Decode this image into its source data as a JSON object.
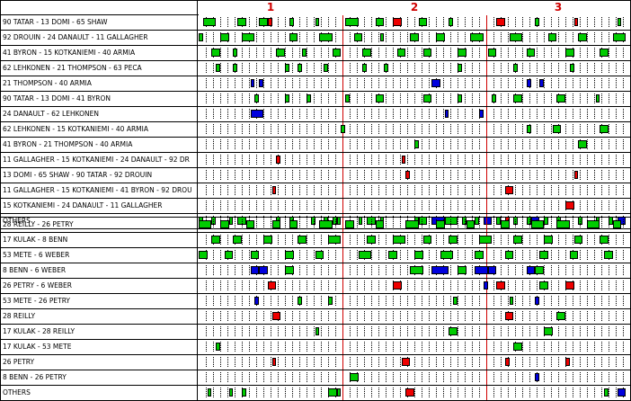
{
  "periods": [
    "1",
    "2",
    "3"
  ],
  "colors": {
    "even_strength": "#00cc00",
    "power_play": "#ee0000",
    "penalty_kill": "#0000dd",
    "period_line": "#d00000"
  },
  "team1": {
    "lines": [
      {
        "label": "90 TATAR - 13 DOMI - 65 SHAW",
        "shifts": [
          [
            "g",
            0.01,
            0.04
          ],
          [
            "g",
            0.09,
            0.11
          ],
          [
            "g",
            0.14,
            0.16
          ],
          [
            "r",
            0.16,
            0.17
          ],
          [
            "g",
            0.21,
            0.22
          ],
          [
            "g",
            0.27,
            0.28
          ],
          [
            "g",
            0.34,
            0.37
          ],
          [
            "g",
            0.41,
            0.43
          ],
          [
            "r",
            0.45,
            0.47
          ],
          [
            "g",
            0.51,
            0.53
          ],
          [
            "g",
            0.58,
            0.59
          ],
          [
            "r",
            0.69,
            0.71
          ],
          [
            "g",
            0.78,
            0.79
          ],
          [
            "r",
            0.87,
            0.88
          ],
          [
            "g",
            0.97,
            0.98
          ]
        ]
      },
      {
        "label": "92 DROUIN - 24 DANAULT - 11 GALLAGHER",
        "shifts": [
          [
            "g",
            0.0,
            0.01
          ],
          [
            "g",
            0.05,
            0.07
          ],
          [
            "g",
            0.1,
            0.13
          ],
          [
            "g",
            0.21,
            0.23
          ],
          [
            "g",
            0.28,
            0.31
          ],
          [
            "g",
            0.36,
            0.38
          ],
          [
            "g",
            0.42,
            0.43
          ],
          [
            "g",
            0.49,
            0.51
          ],
          [
            "g",
            0.55,
            0.57
          ],
          [
            "g",
            0.63,
            0.66
          ],
          [
            "g",
            0.72,
            0.75
          ],
          [
            "g",
            0.81,
            0.83
          ],
          [
            "g",
            0.88,
            0.9
          ],
          [
            "g",
            0.96,
            0.99
          ]
        ]
      },
      {
        "label": "41 BYRON - 15 KOTKANIEMI - 40 ARMIA",
        "shifts": [
          [
            "g",
            0.03,
            0.05
          ],
          [
            "g",
            0.08,
            0.09
          ],
          [
            "g",
            0.18,
            0.2
          ],
          [
            "g",
            0.24,
            0.25
          ],
          [
            "g",
            0.31,
            0.33
          ],
          [
            "g",
            0.38,
            0.4
          ],
          [
            "g",
            0.46,
            0.48
          ],
          [
            "g",
            0.52,
            0.54
          ],
          [
            "g",
            0.6,
            0.62
          ],
          [
            "g",
            0.67,
            0.69
          ],
          [
            "g",
            0.76,
            0.78
          ],
          [
            "g",
            0.85,
            0.87
          ],
          [
            "g",
            0.93,
            0.95
          ]
        ]
      },
      {
        "label": "62 LEHKONEN - 21 THOMPSON - 63 PECA",
        "shifts": [
          [
            "g",
            0.04,
            0.05
          ],
          [
            "g",
            0.08,
            0.09
          ],
          [
            "g",
            0.2,
            0.21
          ],
          [
            "g",
            0.23,
            0.24
          ],
          [
            "g",
            0.29,
            0.3
          ],
          [
            "g",
            0.38,
            0.39
          ],
          [
            "g",
            0.43,
            0.44
          ],
          [
            "g",
            0.6,
            0.61
          ],
          [
            "g",
            0.73,
            0.74
          ],
          [
            "g",
            0.86,
            0.87
          ]
        ]
      },
      {
        "label": "21 THOMPSON - 40 ARMIA",
        "shifts": [
          [
            "b",
            0.12,
            0.13
          ],
          [
            "b",
            0.14,
            0.15
          ],
          [
            "b",
            0.54,
            0.56
          ],
          [
            "b",
            0.76,
            0.77
          ],
          [
            "b",
            0.79,
            0.8
          ]
        ]
      },
      {
        "label": "90 TATAR - 13 DOMI - 41 BYRON",
        "shifts": [
          [
            "g",
            0.13,
            0.14
          ],
          [
            "g",
            0.2,
            0.21
          ],
          [
            "g",
            0.25,
            0.26
          ],
          [
            "g",
            0.34,
            0.35
          ],
          [
            "g",
            0.41,
            0.43
          ],
          [
            "g",
            0.52,
            0.54
          ],
          [
            "g",
            0.6,
            0.61
          ],
          [
            "g",
            0.68,
            0.69
          ],
          [
            "g",
            0.73,
            0.75
          ],
          [
            "g",
            0.83,
            0.85
          ],
          [
            "g",
            0.92,
            0.93
          ]
        ]
      },
      {
        "label": "24 DANAULT - 62 LEHKONEN",
        "shifts": [
          [
            "b",
            0.12,
            0.15
          ],
          [
            "b",
            0.57,
            0.58
          ],
          [
            "b",
            0.65,
            0.66
          ]
        ]
      },
      {
        "label": "62 LEHKONEN - 15 KOTKANIEMI - 40 ARMIA",
        "shifts": [
          [
            "g",
            0.33,
            0.34
          ],
          [
            "g",
            0.76,
            0.77
          ],
          [
            "g",
            0.82,
            0.84
          ],
          [
            "g",
            0.93,
            0.95
          ]
        ]
      },
      {
        "label": "41 BYRON - 21 THOMPSON - 40 ARMIA",
        "shifts": [
          [
            "g",
            0.5,
            0.51
          ],
          [
            "g",
            0.88,
            0.9
          ]
        ]
      },
      {
        "label": "11 GALLAGHER - 15 KOTKANIEMI - 24 DANAULT - 92 DR",
        "shifts": [
          [
            "r",
            0.18,
            0.19
          ],
          [
            "r",
            0.47,
            0.48
          ]
        ]
      },
      {
        "label": "13 DOMI - 65 SHAW - 90 TATAR - 92 DROUIN",
        "shifts": [
          [
            "r",
            0.48,
            0.49
          ],
          [
            "r",
            0.87,
            0.88
          ]
        ]
      },
      {
        "label": "11 GALLAGHER - 15 KOTKANIEMI - 41 BYRON - 92 DROU",
        "shifts": [
          [
            "r",
            0.17,
            0.18
          ],
          [
            "r",
            0.71,
            0.73
          ]
        ]
      },
      {
        "label": "15 KOTKANIEMI - 24 DANAULT - 11 GALLAGHER",
        "shifts": [
          [
            "r",
            0.85,
            0.87
          ]
        ]
      },
      {
        "label": "OTHERS",
        "shifts": [
          [
            "g",
            0.0,
            0.01
          ],
          [
            "g",
            0.03,
            0.04
          ],
          [
            "g",
            0.07,
            0.08
          ],
          [
            "g",
            0.09,
            0.11
          ],
          [
            "g",
            0.18,
            0.19
          ],
          [
            "g",
            0.21,
            0.22
          ],
          [
            "g",
            0.26,
            0.27
          ],
          [
            "g",
            0.29,
            0.3
          ],
          [
            "g",
            0.31,
            0.32
          ],
          [
            "g",
            0.32,
            0.33
          ],
          [
            "g",
            0.37,
            0.38
          ],
          [
            "g",
            0.39,
            0.41
          ],
          [
            "g",
            0.42,
            0.43
          ],
          [
            "g",
            0.5,
            0.51
          ],
          [
            "g",
            0.51,
            0.53
          ],
          [
            "b",
            0.54,
            0.57
          ],
          [
            "g",
            0.57,
            0.6
          ],
          [
            "g",
            0.61,
            0.62
          ],
          [
            "g",
            0.64,
            0.65
          ],
          [
            "b",
            0.66,
            0.68
          ],
          [
            "g",
            0.69,
            0.7
          ],
          [
            "r",
            0.71,
            0.72
          ],
          [
            "g",
            0.73,
            0.74
          ],
          [
            "g",
            0.76,
            0.77
          ],
          [
            "b",
            0.77,
            0.79
          ],
          [
            "g",
            0.8,
            0.81
          ],
          [
            "g",
            0.83,
            0.84
          ],
          [
            "g",
            0.88,
            0.89
          ],
          [
            "g",
            0.92,
            0.93
          ],
          [
            "g",
            0.95,
            0.96
          ],
          [
            "b",
            0.97,
            0.99
          ]
        ]
      }
    ]
  },
  "team2": {
    "lines": [
      {
        "label": "28 REILLY - 26 PETRY",
        "shifts": [
          [
            "g",
            0.0,
            0.03
          ],
          [
            "g",
            0.05,
            0.07
          ],
          [
            "g",
            0.11,
            0.13
          ],
          [
            "g",
            0.17,
            0.19
          ],
          [
            "g",
            0.21,
            0.23
          ],
          [
            "g",
            0.28,
            0.31
          ],
          [
            "g",
            0.34,
            0.36
          ],
          [
            "g",
            0.41,
            0.43
          ],
          [
            "g",
            0.48,
            0.51
          ],
          [
            "g",
            0.55,
            0.57
          ],
          [
            "g",
            0.62,
            0.64
          ],
          [
            "g",
            0.7,
            0.72
          ],
          [
            "g",
            0.77,
            0.8
          ],
          [
            "g",
            0.83,
            0.86
          ],
          [
            "g",
            0.9,
            0.93
          ],
          [
            "g",
            0.96,
            0.98
          ]
        ]
      },
      {
        "label": "17 KULAK - 8 BENN",
        "shifts": [
          [
            "g",
            0.03,
            0.05
          ],
          [
            "g",
            0.08,
            0.1
          ],
          [
            "g",
            0.15,
            0.17
          ],
          [
            "g",
            0.23,
            0.25
          ],
          [
            "g",
            0.3,
            0.33
          ],
          [
            "g",
            0.39,
            0.41
          ],
          [
            "g",
            0.45,
            0.48
          ],
          [
            "g",
            0.52,
            0.54
          ],
          [
            "g",
            0.58,
            0.6
          ],
          [
            "g",
            0.65,
            0.68
          ],
          [
            "g",
            0.73,
            0.75
          ],
          [
            "g",
            0.8,
            0.82
          ],
          [
            "g",
            0.87,
            0.89
          ],
          [
            "g",
            0.93,
            0.95
          ]
        ]
      },
      {
        "label": "53 METE - 6 WEBER",
        "shifts": [
          [
            "g",
            0.0,
            0.02
          ],
          [
            "g",
            0.06,
            0.08
          ],
          [
            "g",
            0.12,
            0.14
          ],
          [
            "g",
            0.2,
            0.22
          ],
          [
            "g",
            0.27,
            0.29
          ],
          [
            "g",
            0.37,
            0.4
          ],
          [
            "g",
            0.44,
            0.46
          ],
          [
            "g",
            0.5,
            0.52
          ],
          [
            "g",
            0.56,
            0.59
          ],
          [
            "g",
            0.64,
            0.66
          ],
          [
            "g",
            0.71,
            0.73
          ],
          [
            "g",
            0.79,
            0.81
          ],
          [
            "g",
            0.86,
            0.88
          ],
          [
            "g",
            0.94,
            0.96
          ]
        ]
      },
      {
        "label": "8 BENN - 6 WEBER",
        "shifts": [
          [
            "b",
            0.12,
            0.14
          ],
          [
            "b",
            0.14,
            0.16
          ],
          [
            "g",
            0.2,
            0.22
          ],
          [
            "g",
            0.49,
            0.52
          ],
          [
            "b",
            0.54,
            0.58
          ],
          [
            "g",
            0.6,
            0.62
          ],
          [
            "b",
            0.64,
            0.67
          ],
          [
            "b",
            0.67,
            0.69
          ],
          [
            "b",
            0.76,
            0.78
          ],
          [
            "g",
            0.78,
            0.8
          ]
        ]
      },
      {
        "label": "26 PETRY - 6 WEBER",
        "shifts": [
          [
            "r",
            0.16,
            0.18
          ],
          [
            "r",
            0.45,
            0.47
          ],
          [
            "b",
            0.66,
            0.67
          ],
          [
            "r",
            0.69,
            0.71
          ],
          [
            "g",
            0.79,
            0.81
          ],
          [
            "r",
            0.85,
            0.87
          ]
        ]
      },
      {
        "label": "53 METE - 26 PETRY",
        "shifts": [
          [
            "b",
            0.13,
            0.14
          ],
          [
            "g",
            0.23,
            0.24
          ],
          [
            "g",
            0.3,
            0.31
          ],
          [
            "g",
            0.59,
            0.6
          ],
          [
            "g",
            0.72,
            0.73
          ],
          [
            "b",
            0.78,
            0.79
          ]
        ]
      },
      {
        "label": "28 REILLY",
        "shifts": [
          [
            "r",
            0.17,
            0.19
          ],
          [
            "r",
            0.71,
            0.73
          ],
          [
            "g",
            0.83,
            0.85
          ]
        ]
      },
      {
        "label": "17 KULAK - 28 REILLY",
        "shifts": [
          [
            "g",
            0.27,
            0.28
          ],
          [
            "g",
            0.58,
            0.6
          ],
          [
            "g",
            0.8,
            0.82
          ]
        ]
      },
      {
        "label": "17 KULAK - 53 METE",
        "shifts": [
          [
            "g",
            0.04,
            0.05
          ],
          [
            "g",
            0.73,
            0.75
          ]
        ]
      },
      {
        "label": "26 PETRY",
        "shifts": [
          [
            "r",
            0.17,
            0.18
          ],
          [
            "r",
            0.47,
            0.49
          ],
          [
            "r",
            0.71,
            0.72
          ],
          [
            "r",
            0.85,
            0.86
          ]
        ]
      },
      {
        "label": "8 BENN - 26 PETRY",
        "shifts": [
          [
            "g",
            0.35,
            0.37
          ],
          [
            "b",
            0.78,
            0.79
          ]
        ]
      },
      {
        "label": "OTHERS",
        "shifts": [
          [
            "g",
            0.02,
            0.03
          ],
          [
            "g",
            0.07,
            0.08
          ],
          [
            "g",
            0.1,
            0.11
          ],
          [
            "g",
            0.3,
            0.32
          ],
          [
            "g",
            0.32,
            0.33
          ],
          [
            "r",
            0.48,
            0.5
          ],
          [
            "g",
            0.94,
            0.95
          ],
          [
            "b",
            0.97,
            0.99
          ]
        ]
      }
    ]
  }
}
